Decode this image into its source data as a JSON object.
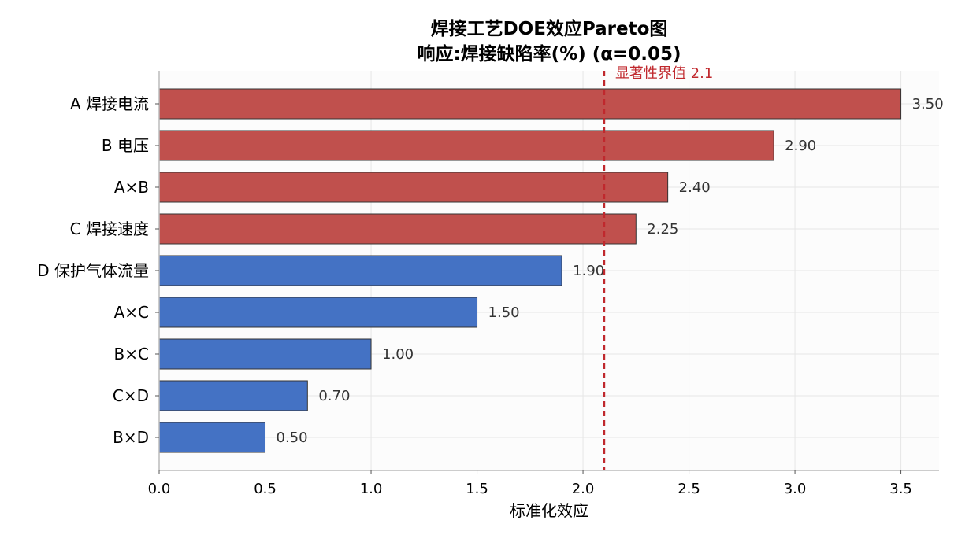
{
  "chart_data": {
    "type": "bar",
    "orientation": "horizontal",
    "title": "焊接工艺DOE效应Pareto图",
    "subtitle": "响应:焊接缺陷率(%)  (α=0.05)",
    "xlabel": "标准化效应",
    "ylabel": "",
    "xlim": [
      0,
      3.68
    ],
    "xticks": [
      "0.0",
      "0.5",
      "1.0",
      "1.5",
      "2.0",
      "2.5",
      "3.0",
      "3.5"
    ],
    "grid": true,
    "categories": [
      "A 焊接电流",
      "B 电压",
      "A×B",
      "C 焊接速度",
      "D 保护气体流量",
      "A×C",
      "B×C",
      "C×D",
      "B×D"
    ],
    "values": [
      3.5,
      2.9,
      2.4,
      2.25,
      1.9,
      1.5,
      1.0,
      0.7,
      0.5
    ],
    "value_labels": [
      "3.50",
      "2.90",
      "2.40",
      "2.25",
      "1.90",
      "1.50",
      "1.00",
      "0.70",
      "0.50"
    ],
    "significant": [
      true,
      true,
      true,
      true,
      false,
      false,
      false,
      false,
      false
    ],
    "threshold": {
      "value": 2.1,
      "label": "显著性界值 2.1"
    },
    "colors": {
      "significant": "#c0504d",
      "not_significant": "#4472c4",
      "threshold": "#c0282d",
      "bar_edge": "#333333",
      "grid": "#e6e6e6",
      "axis": "#bbbbbb",
      "value_text": "#333333"
    }
  }
}
